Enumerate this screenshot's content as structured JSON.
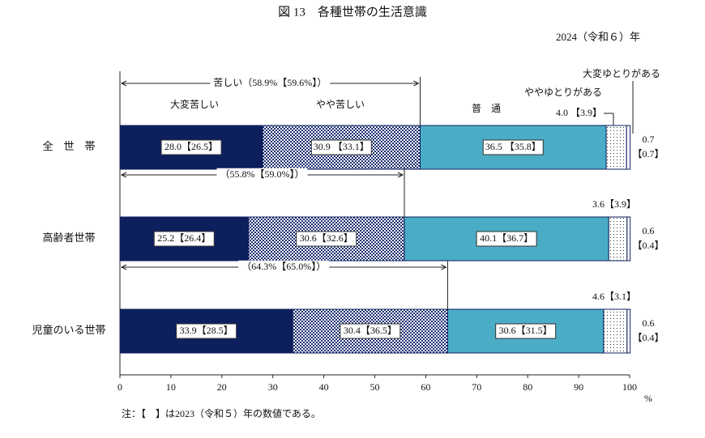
{
  "chart_data": {
    "type": "stacked-bar-horizontal",
    "title": "図 13　各種世帯の生活意識",
    "subtitle": "2024（令和６）年",
    "categories": [
      "全　世　帯",
      "高齢者世帯",
      "児童のいる世帯"
    ],
    "series": [
      {
        "name": "大変苦しい",
        "color": "#0d1f5c",
        "pattern": "solid",
        "values": [
          28.0,
          25.2,
          33.9
        ],
        "value_labels": [
          "28.0【26.5】",
          "25.2【26.4】",
          "33.9【28.5】"
        ]
      },
      {
        "name": "やや苦しい",
        "color": "#1c2f73",
        "pattern": "checker",
        "values": [
          30.9,
          30.6,
          30.4
        ],
        "value_labels": [
          "30.9 【33.1】",
          "30.6【32.6】",
          "30.4【36.5】"
        ]
      },
      {
        "name": "普　通",
        "color": "#4bacc6",
        "pattern": "solid",
        "values": [
          36.5,
          40.1,
          30.6
        ],
        "value_labels": [
          "36.5 【35.8】",
          "40.1【36.7】",
          "30.6【31.5】"
        ]
      },
      {
        "name": "ややゆとりがある",
        "color": "#333333",
        "pattern": "dots",
        "values": [
          4.0,
          3.6,
          4.6
        ],
        "value_labels": [
          "4.0 【3.9】",
          "3.6【3.9】",
          "4.6【3.1】"
        ]
      },
      {
        "name": "大変ゆとりがある",
        "color": "#ffffff",
        "pattern": "solid",
        "values": [
          0.7,
          0.6,
          0.6
        ],
        "value_labels": [
          [
            "0.7",
            "【0.7】"
          ],
          [
            "0.6",
            "【0.4】"
          ],
          [
            "0.6",
            "【0.4】"
          ]
        ]
      }
    ],
    "hardship_totals": [
      {
        "value": 58.9,
        "label": "苦しい（58.9%【59.6%】）"
      },
      {
        "value": 55.8,
        "label": "（55.8%【59.0%】）"
      },
      {
        "value": 64.3,
        "label": "（64.3%【65.0%】）"
      }
    ],
    "xlim": [
      0,
      100
    ],
    "xticks": [
      0,
      10,
      20,
      30,
      40,
      50,
      60,
      70,
      80,
      90,
      100
    ],
    "x_label": "%",
    "note": "注：【　】は2023（令和５）年の数値である。"
  }
}
